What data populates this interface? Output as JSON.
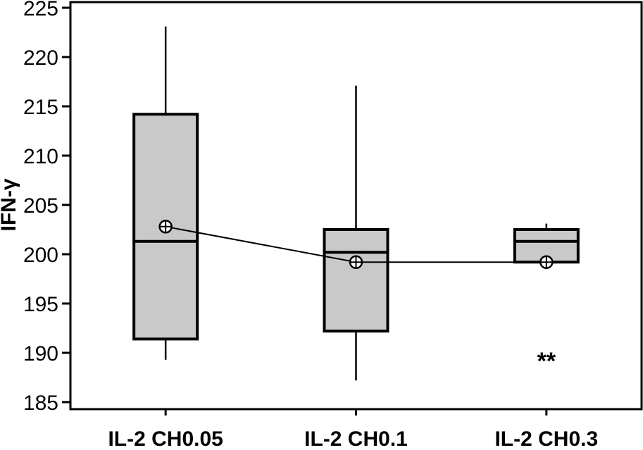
{
  "figure": {
    "background_color": "#ffffff",
    "foreground_color": "#000000"
  },
  "chart_data": {
    "type": "box",
    "title": "",
    "xlabel": "",
    "ylabel": "IFN-γ",
    "categories": [
      "IL-2 CH0.05",
      "IL-2 CH0.1",
      "IL-2 CH0.3"
    ],
    "ylim": [
      185,
      225
    ],
    "yticks": [
      225,
      220,
      215,
      210,
      205,
      200,
      195,
      190,
      185
    ],
    "grid": false,
    "frame": true,
    "legend": "none",
    "box_fill_color": "#c9c9c9",
    "line_color": "#000000",
    "mean_marker": "circled-plus",
    "mean_line_connects_groups": true,
    "series": [
      {
        "category": "IL-2 CH0.05",
        "whisker_low": 189.3,
        "q1": 191.4,
        "median": 201.3,
        "q3": 214.2,
        "whisker_high": 223.1,
        "mean": 202.8
      },
      {
        "category": "IL-2 CH0.1",
        "whisker_low": 187.2,
        "q1": 192.2,
        "median": 200.2,
        "q3": 202.5,
        "whisker_high": 217.1,
        "mean": 199.2
      },
      {
        "category": "IL-2 CH0.3",
        "whisker_low": null,
        "q1": 199.2,
        "median": 201.3,
        "q3": 202.5,
        "whisker_high": 203.1,
        "mean": 199.2
      }
    ],
    "annotations": [
      {
        "text": "**",
        "category": "IL-2 CH0.3",
        "y": 189.2
      }
    ]
  }
}
